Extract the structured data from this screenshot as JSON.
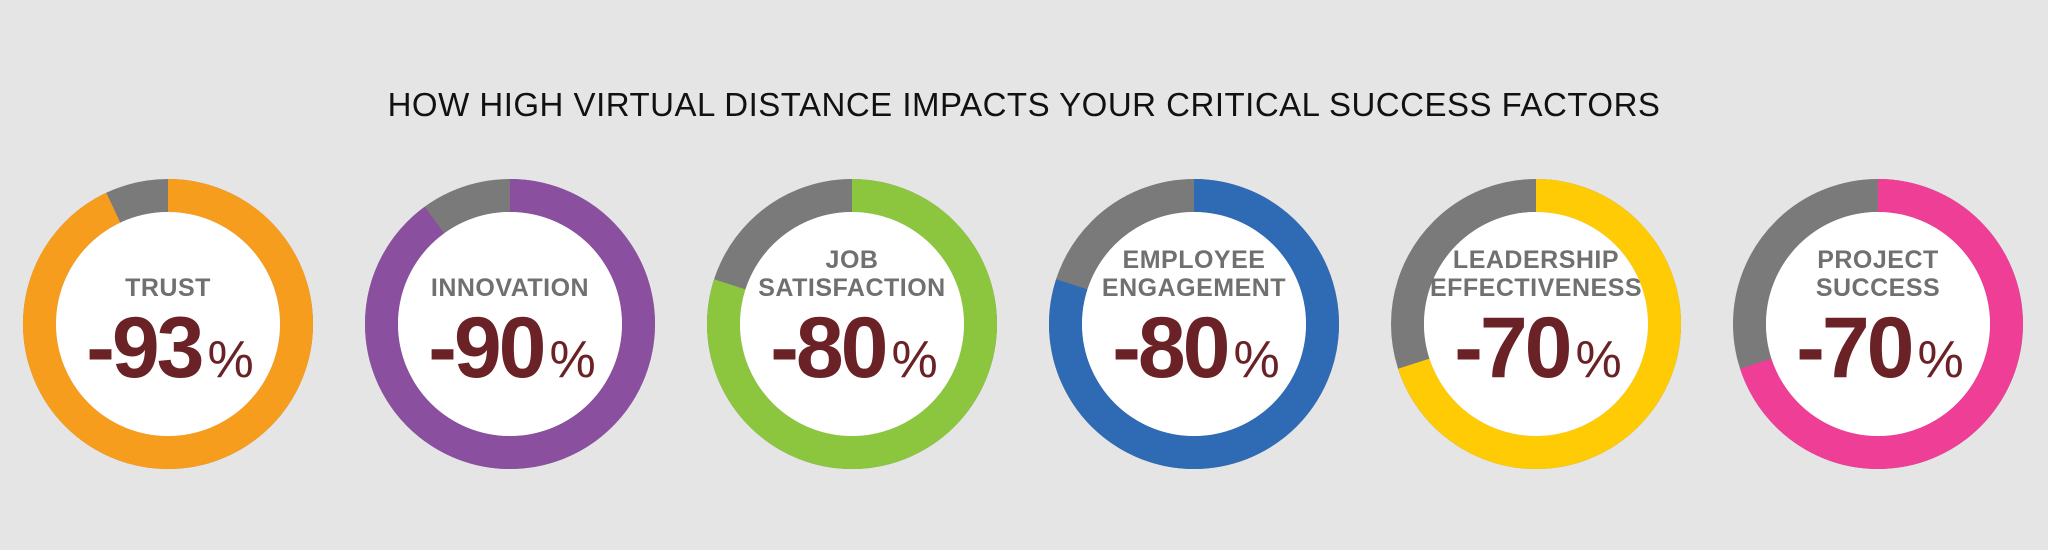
{
  "chart_data": {
    "type": "pie",
    "variant": "donut",
    "title": "HOW HIGH VIRTUAL DISTANCE IMPACTS YOUR CRITICAL SUCCESS FACTORS",
    "remainder_color": "#7a7a7a",
    "center_color": "#ffffff",
    "value_color": "#6b2226",
    "label_color": "#707070",
    "items": [
      {
        "label_lines": [
          "TRUST"
        ],
        "value": -93,
        "display": "-93",
        "unit": "%",
        "color": "#f79d1e"
      },
      {
        "label_lines": [
          "INNOVATION"
        ],
        "value": -90,
        "display": "-90",
        "unit": "%",
        "color": "#8a4f9e"
      },
      {
        "label_lines": [
          "JOB",
          "SATISFACTION"
        ],
        "value": -80,
        "display": "-80",
        "unit": "%",
        "color": "#8cc63f"
      },
      {
        "label_lines": [
          "EMPLOYEE",
          "ENGAGEMENT"
        ],
        "value": -80,
        "display": "-80",
        "unit": "%",
        "color": "#2e6bb4"
      },
      {
        "label_lines": [
          "LEADERSHIP",
          "EFFECTIVENESS"
        ],
        "value": -70,
        "display": "-70",
        "unit": "%",
        "color": "#ffcb05"
      },
      {
        "label_lines": [
          "PROJECT",
          "SUCCESS"
        ],
        "value": -70,
        "display": "-70",
        "unit": "%",
        "color": "#ee3e96"
      }
    ]
  }
}
